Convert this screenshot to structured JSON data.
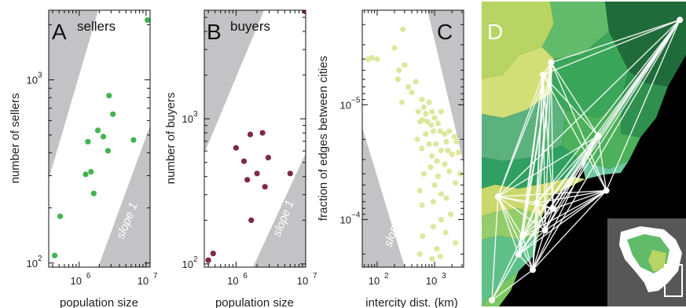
{
  "colors": {
    "band": "#c3c3c5",
    "sellers": "#41b54f",
    "buyers": "#7d2a47",
    "edges": "#dfe79e",
    "map_bg": "#000000",
    "map_lines": "#ffffff"
  },
  "chart_data": [
    {
      "type": "scatter",
      "panel": "A",
      "title": "sellers",
      "xlabel": "population size",
      "ylabel": "number of sellers",
      "xscale": "log",
      "yscale": "log",
      "xlim": [
        350000,
        11500000
      ],
      "ylim": [
        95,
        2400
      ],
      "xticks": [
        {
          "v": 1000000,
          "base": "10",
          "exp": "6"
        },
        {
          "v": 10000000,
          "base": "10",
          "exp": "7"
        }
      ],
      "yticks": [
        {
          "v": 100,
          "base": "10",
          "exp": "2"
        },
        {
          "v": 1000,
          "base": "10",
          "exp": "3"
        }
      ],
      "band_label": "slope 1",
      "points": [
        [
          430000,
          110
        ],
        [
          520000,
          180
        ],
        [
          1250000,
          305
        ],
        [
          1500000,
          315
        ],
        [
          1650000,
          240
        ],
        [
          1350000,
          460
        ],
        [
          1900000,
          530
        ],
        [
          2700000,
          410
        ],
        [
          2300000,
          490
        ],
        [
          3200000,
          650
        ],
        [
          2800000,
          820
        ],
        [
          6500000,
          470
        ],
        [
          10500000,
          2120
        ]
      ]
    },
    {
      "type": "scatter",
      "panel": "B",
      "title": "buyers",
      "xlabel": "population size",
      "ylabel": "number of buyers",
      "xscale": "log",
      "yscale": "log",
      "xlim": [
        350000,
        10000000
      ],
      "ylim": [
        95,
        5600
      ],
      "xticks": [
        {
          "v": 1000000,
          "base": "10",
          "exp": "6"
        },
        {
          "v": 10000000,
          "base": "10",
          "exp": "7"
        }
      ],
      "yticks": [
        {
          "v": 100,
          "base": "10",
          "exp": "2"
        },
        {
          "v": 1000,
          "base": "10",
          "exp": "3"
        }
      ],
      "band_label": "slope 1",
      "points": [
        [
          400000,
          106
        ],
        [
          470000,
          118
        ],
        [
          1000000,
          630
        ],
        [
          1300000,
          510
        ],
        [
          1450000,
          380
        ],
        [
          1600000,
          780
        ],
        [
          2000000,
          420
        ],
        [
          1650000,
          200
        ],
        [
          2400000,
          800
        ],
        [
          2900000,
          540
        ],
        [
          2600000,
          340
        ],
        [
          6000000,
          420
        ],
        [
          9800000,
          5500
        ]
      ]
    },
    {
      "type": "scatter",
      "panel": "C",
      "xlabel": "intercity dist. (km)",
      "ylabel": "fraction of edges between cities",
      "xscale": "log",
      "yscale": "log",
      "xlim": [
        55,
        3200
      ],
      "ylim": [
        0.00026,
        1.5e-06
      ],
      "xticks": [
        {
          "v": 100,
          "base": "10",
          "exp": "2"
        },
        {
          "v": 1000,
          "base": "10",
          "exp": "3"
        }
      ],
      "yticks": [
        {
          "v": 1e-05,
          "base": "10",
          "exp": "−5"
        },
        {
          "v": 0.0001,
          "base": "10",
          "exp": "−4"
        }
      ],
      "band_label": "slope −2",
      "points": [
        [
          70,
          4e-06
        ],
        [
          80,
          3.9e-06
        ],
        [
          100,
          4e-06
        ],
        [
          280,
          2.2e-06
        ],
        [
          200,
          3.2e-06
        ],
        [
          240,
          5e-06
        ],
        [
          300,
          4.5e-06
        ],
        [
          230,
          6e-06
        ],
        [
          270,
          9.5e-06
        ],
        [
          350,
          7e-06
        ],
        [
          470,
          6.3e-06
        ],
        [
          400,
          7.8e-06
        ],
        [
          520,
          1.15e-05
        ],
        [
          600,
          9e-06
        ],
        [
          650,
          1.05e-05
        ],
        [
          700,
          1.2e-05
        ],
        [
          800,
          9.5e-06
        ],
        [
          900,
          1.15e-05
        ],
        [
          560,
          1.4e-05
        ],
        [
          620,
          1.35e-05
        ],
        [
          750,
          1.4e-05
        ],
        [
          870,
          1.5e-05
        ],
        [
          1000,
          1.3e-05
        ],
        [
          1150,
          1.45e-05
        ],
        [
          1300,
          1.15e-05
        ],
        [
          950,
          1.7e-05
        ],
        [
          700,
          1.8e-05
        ],
        [
          500,
          2e-05
        ],
        [
          1250,
          1.7e-05
        ],
        [
          1500,
          1.8e-05
        ],
        [
          1800,
          1.7e-05
        ],
        [
          2200,
          1.9e-05
        ],
        [
          800,
          2.2e-05
        ],
        [
          1050,
          2.2e-05
        ],
        [
          600,
          2.4e-05
        ],
        [
          1600,
          2.1e-05
        ],
        [
          2400,
          2.1e-05
        ],
        [
          900,
          2.8e-05
        ],
        [
          1300,
          2.5e-05
        ],
        [
          1700,
          2.5e-05
        ],
        [
          1100,
          3.1e-05
        ],
        [
          2000,
          2.7e-05
        ],
        [
          2600,
          2.6e-05
        ],
        [
          850,
          3.5e-05
        ],
        [
          1500,
          3.3e-05
        ],
        [
          650,
          4e-05
        ],
        [
          1150,
          4.2e-05
        ],
        [
          1800,
          3.8e-05
        ],
        [
          2800,
          4e-05
        ],
        [
          550,
          5.6e-05
        ],
        [
          2300,
          4.8e-05
        ],
        [
          1000,
          5e-05
        ],
        [
          1600,
          6.5e-05
        ],
        [
          1300,
          6e-05
        ],
        [
          950,
          7e-05
        ],
        [
          600,
          7.5e-05
        ],
        [
          1900,
          9e-05
        ],
        [
          1300,
          0.0001
        ],
        [
          950,
          0.000115
        ],
        [
          1550,
          0.00013
        ],
        [
          1100,
          0.00018
        ],
        [
          620,
          0.00014
        ],
        [
          550,
          0.0002
        ],
        [
          900,
          0.00022
        ],
        [
          1250,
          0.00021
        ],
        [
          2300,
          0.00016
        ]
      ]
    }
  ],
  "panel_d": {
    "letter": "D",
    "description_hidden": false,
    "nodes": [
      [
        0.97,
        0.06
      ],
      [
        0.3,
        0.24
      ],
      [
        0.34,
        0.2
      ],
      [
        0.57,
        0.44
      ],
      [
        0.61,
        0.62
      ],
      [
        0.08,
        0.64
      ],
      [
        0.27,
        0.66
      ],
      [
        0.35,
        0.68
      ],
      [
        0.31,
        0.75
      ],
      [
        0.2,
        0.77
      ],
      [
        0.18,
        0.83
      ],
      [
        0.25,
        0.88
      ],
      [
        0.05,
        0.98
      ]
    ],
    "edges": [
      [
        0,
        1
      ],
      [
        0,
        2
      ],
      [
        0,
        3
      ],
      [
        0,
        4
      ],
      [
        0,
        5
      ],
      [
        0,
        6
      ],
      [
        0,
        7
      ],
      [
        0,
        8
      ],
      [
        0,
        9
      ],
      [
        0,
        10
      ],
      [
        0,
        11
      ],
      [
        1,
        2
      ],
      [
        1,
        3
      ],
      [
        1,
        4
      ],
      [
        1,
        5
      ],
      [
        1,
        6
      ],
      [
        1,
        7
      ],
      [
        1,
        8
      ],
      [
        1,
        9
      ],
      [
        1,
        10
      ],
      [
        1,
        11
      ],
      [
        2,
        3
      ],
      [
        2,
        4
      ],
      [
        2,
        5
      ],
      [
        2,
        6
      ],
      [
        2,
        7
      ],
      [
        2,
        8
      ],
      [
        2,
        9
      ],
      [
        2,
        10
      ],
      [
        2,
        11
      ],
      [
        3,
        4
      ],
      [
        3,
        5
      ],
      [
        3,
        6
      ],
      [
        3,
        7
      ],
      [
        3,
        8
      ],
      [
        3,
        9
      ],
      [
        3,
        10
      ],
      [
        3,
        11
      ],
      [
        4,
        5
      ],
      [
        4,
        6
      ],
      [
        4,
        7
      ],
      [
        4,
        8
      ],
      [
        4,
        9
      ],
      [
        4,
        10
      ],
      [
        4,
        11
      ],
      [
        5,
        6
      ],
      [
        5,
        7
      ],
      [
        5,
        8
      ],
      [
        5,
        9
      ],
      [
        5,
        10
      ],
      [
        5,
        11
      ],
      [
        5,
        12
      ],
      [
        6,
        7
      ],
      [
        6,
        8
      ],
      [
        6,
        9
      ],
      [
        6,
        10
      ],
      [
        6,
        11
      ],
      [
        7,
        8
      ],
      [
        7,
        9
      ],
      [
        7,
        10
      ],
      [
        8,
        9
      ],
      [
        8,
        10
      ],
      [
        8,
        11
      ],
      [
        9,
        10
      ],
      [
        9,
        11
      ],
      [
        9,
        12
      ],
      [
        10,
        11
      ],
      [
        10,
        12
      ],
      [
        11,
        12
      ]
    ]
  }
}
